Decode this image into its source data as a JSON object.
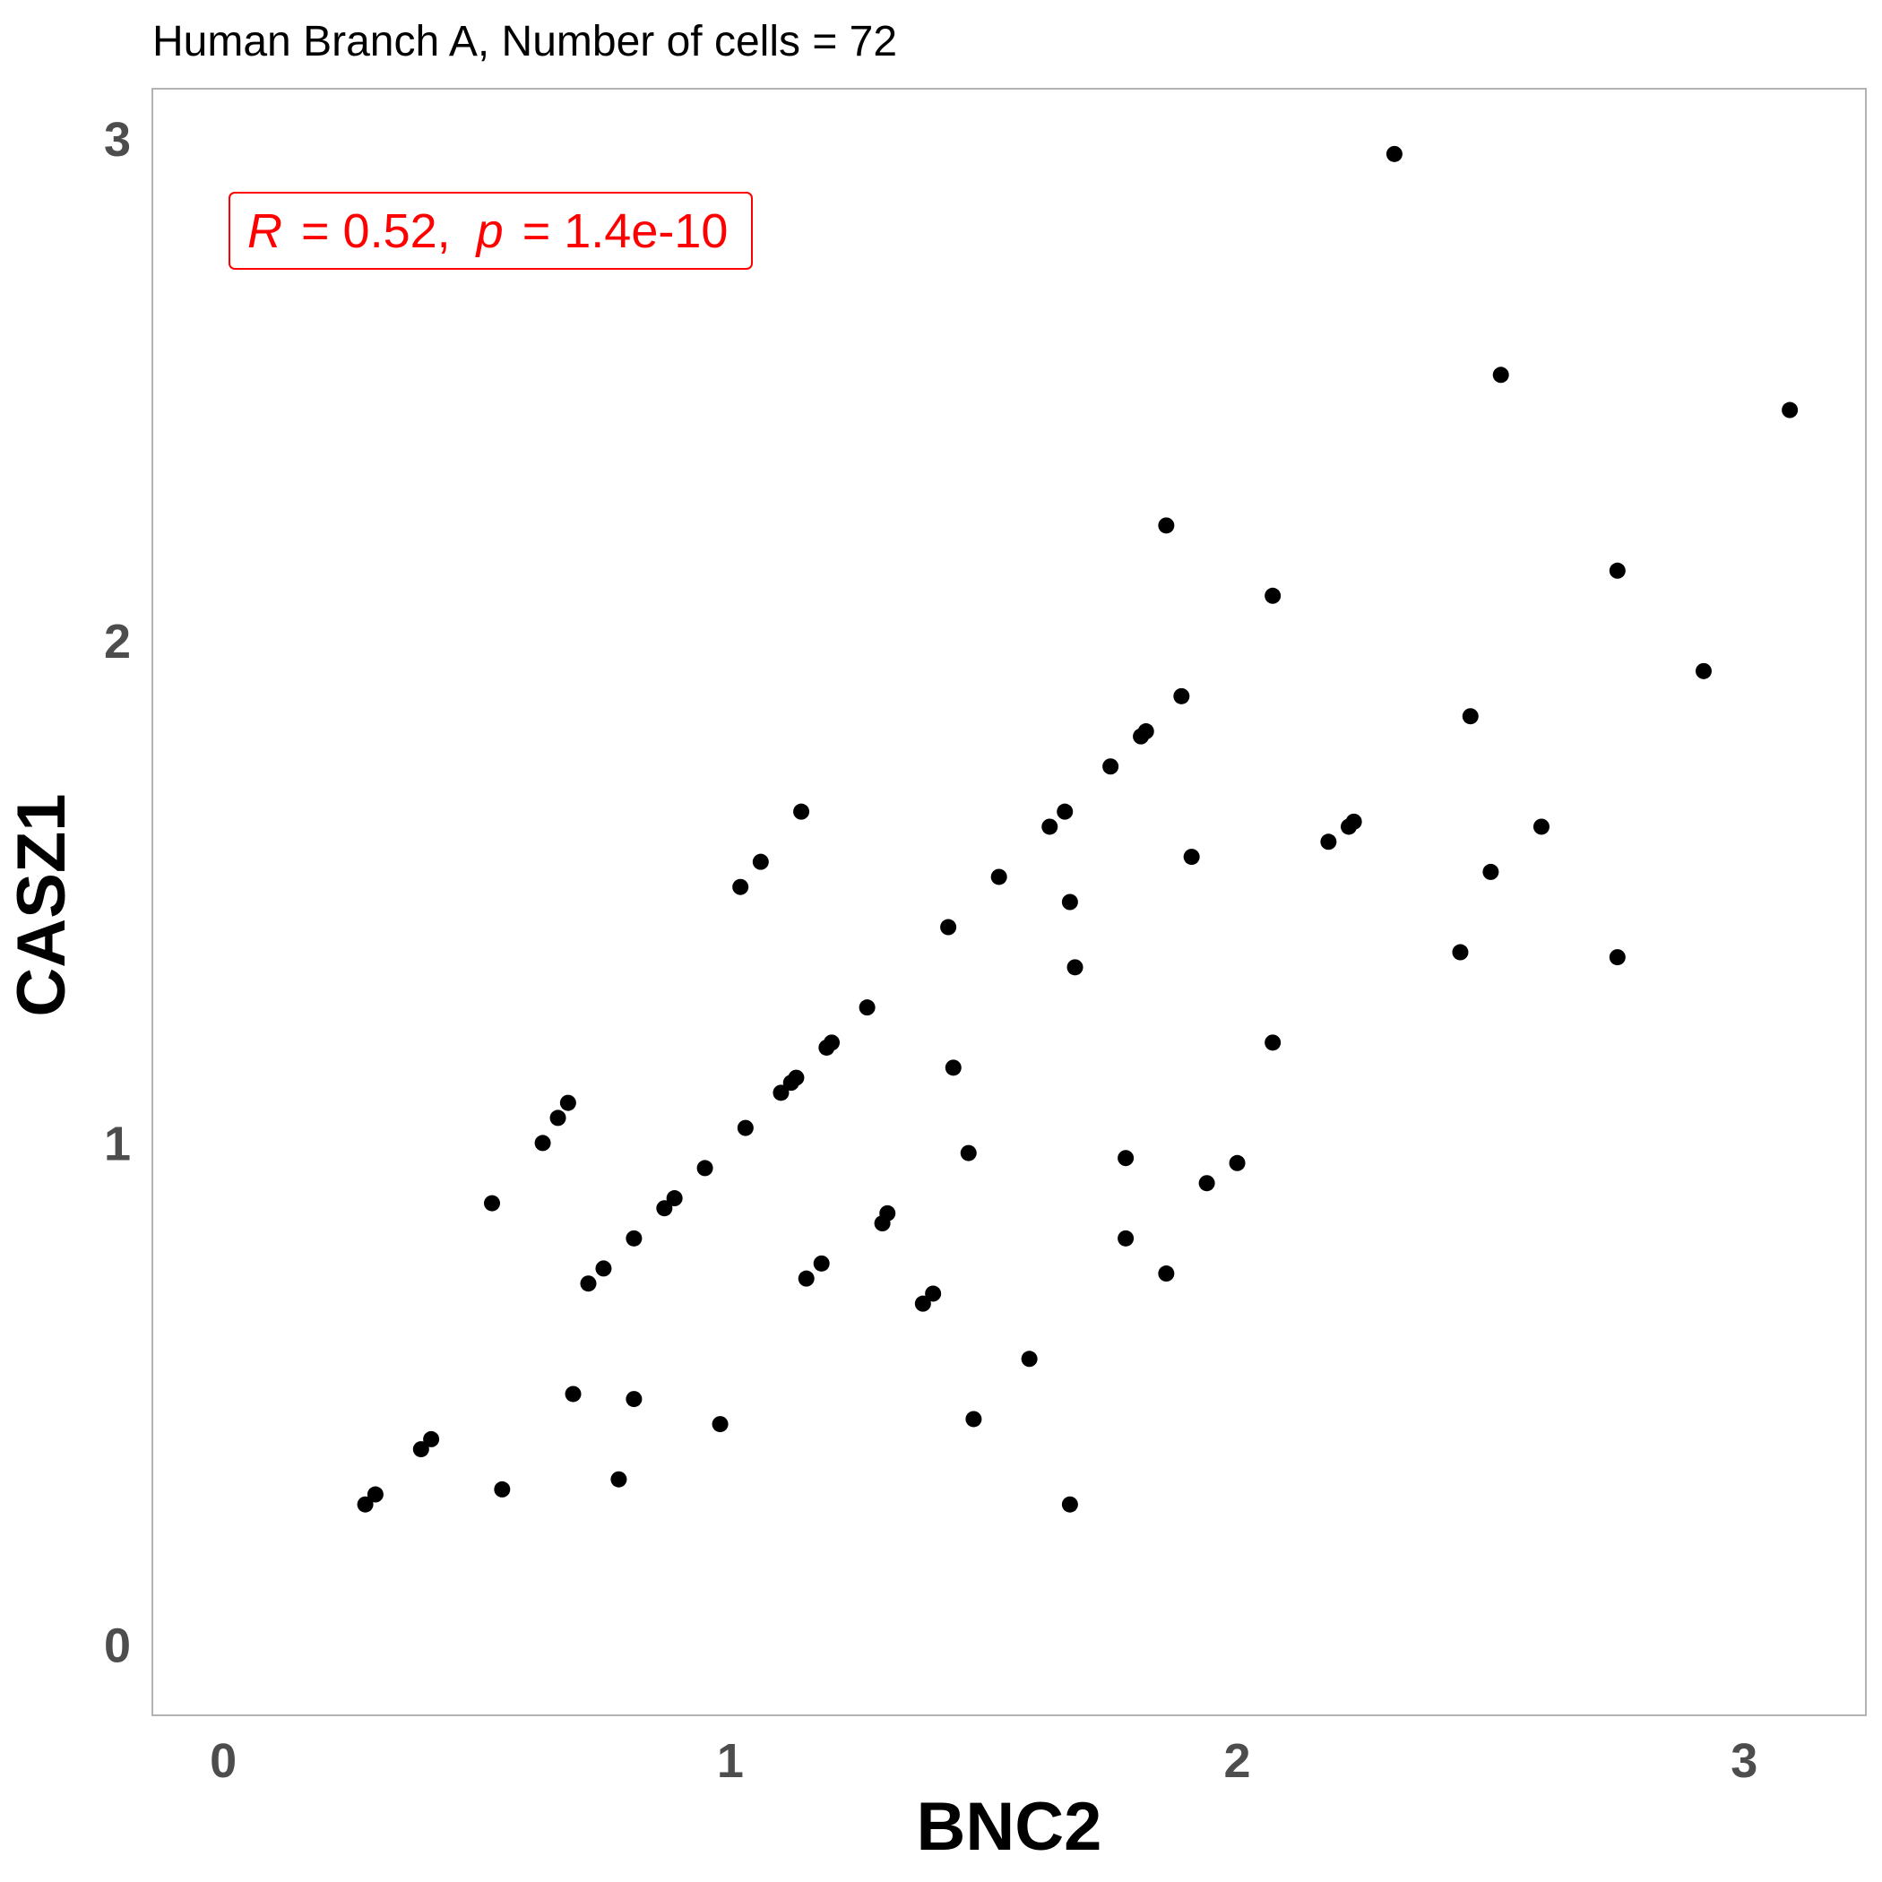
{
  "chart_data": {
    "type": "scatter",
    "title": "Human Branch A, Number of cells = 72",
    "xlabel": "BNC2",
    "ylabel": "CASZ1",
    "xlim": [
      -0.14,
      3.24
    ],
    "ylim": [
      -0.14,
      3.1
    ],
    "x_ticks": [
      0,
      1,
      2,
      3
    ],
    "y_ticks": [
      0,
      1,
      2,
      3
    ],
    "grid": false,
    "legend": "none",
    "point_color": "#000000",
    "annotation": {
      "r_label": "R",
      "r_value": "= 0.52,",
      "p_label": "p",
      "p_value": "= 1.4e-10",
      "color": "#ff0000",
      "position": "top-left"
    },
    "points": [
      {
        "x": 0.28,
        "y": 0.28
      },
      {
        "x": 0.3,
        "y": 0.3
      },
      {
        "x": 0.39,
        "y": 0.39
      },
      {
        "x": 0.41,
        "y": 0.41
      },
      {
        "x": 0.53,
        "y": 0.88
      },
      {
        "x": 0.55,
        "y": 0.31
      },
      {
        "x": 0.63,
        "y": 1.0
      },
      {
        "x": 0.66,
        "y": 1.05
      },
      {
        "x": 0.68,
        "y": 1.08
      },
      {
        "x": 0.69,
        "y": 0.5
      },
      {
        "x": 0.72,
        "y": 0.72
      },
      {
        "x": 0.75,
        "y": 0.75
      },
      {
        "x": 0.78,
        "y": 0.33
      },
      {
        "x": 0.81,
        "y": 0.81
      },
      {
        "x": 0.81,
        "y": 0.49
      },
      {
        "x": 0.87,
        "y": 0.87
      },
      {
        "x": 0.89,
        "y": 0.89
      },
      {
        "x": 0.95,
        "y": 0.95
      },
      {
        "x": 0.98,
        "y": 0.44
      },
      {
        "x": 1.02,
        "y": 1.51
      },
      {
        "x": 1.03,
        "y": 1.03
      },
      {
        "x": 1.06,
        "y": 1.56
      },
      {
        "x": 1.1,
        "y": 1.1
      },
      {
        "x": 1.12,
        "y": 1.12
      },
      {
        "x": 1.13,
        "y": 1.13
      },
      {
        "x": 1.14,
        "y": 1.66
      },
      {
        "x": 1.15,
        "y": 0.73
      },
      {
        "x": 1.18,
        "y": 0.76
      },
      {
        "x": 1.19,
        "y": 1.19
      },
      {
        "x": 1.2,
        "y": 1.2
      },
      {
        "x": 1.27,
        "y": 1.27
      },
      {
        "x": 1.3,
        "y": 0.84
      },
      {
        "x": 1.31,
        "y": 0.86
      },
      {
        "x": 1.38,
        "y": 0.68
      },
      {
        "x": 1.4,
        "y": 0.7
      },
      {
        "x": 1.43,
        "y": 1.43
      },
      {
        "x": 1.44,
        "y": 1.15
      },
      {
        "x": 1.47,
        "y": 0.98
      },
      {
        "x": 1.48,
        "y": 0.45
      },
      {
        "x": 1.53,
        "y": 1.53
      },
      {
        "x": 1.59,
        "y": 0.57
      },
      {
        "x": 1.63,
        "y": 1.63
      },
      {
        "x": 1.66,
        "y": 1.66
      },
      {
        "x": 1.67,
        "y": 1.48
      },
      {
        "x": 1.67,
        "y": 0.28
      },
      {
        "x": 1.68,
        "y": 1.35
      },
      {
        "x": 1.75,
        "y": 1.75
      },
      {
        "x": 1.78,
        "y": 0.97
      },
      {
        "x": 1.78,
        "y": 0.81
      },
      {
        "x": 1.81,
        "y": 1.81
      },
      {
        "x": 1.82,
        "y": 1.82
      },
      {
        "x": 1.86,
        "y": 2.23
      },
      {
        "x": 1.86,
        "y": 0.74
      },
      {
        "x": 1.89,
        "y": 1.89
      },
      {
        "x": 1.91,
        "y": 1.57
      },
      {
        "x": 1.94,
        "y": 0.92
      },
      {
        "x": 2.0,
        "y": 0.96
      },
      {
        "x": 2.07,
        "y": 2.09
      },
      {
        "x": 2.07,
        "y": 1.2
      },
      {
        "x": 2.18,
        "y": 1.6
      },
      {
        "x": 2.22,
        "y": 1.63
      },
      {
        "x": 2.23,
        "y": 1.64
      },
      {
        "x": 2.31,
        "y": 2.97
      },
      {
        "x": 2.44,
        "y": 1.38
      },
      {
        "x": 2.46,
        "y": 1.85
      },
      {
        "x": 2.5,
        "y": 1.54
      },
      {
        "x": 2.52,
        "y": 2.53
      },
      {
        "x": 2.6,
        "y": 1.63
      },
      {
        "x": 2.75,
        "y": 2.14
      },
      {
        "x": 2.75,
        "y": 1.37
      },
      {
        "x": 2.92,
        "y": 1.94
      },
      {
        "x": 3.09,
        "y": 2.46
      }
    ]
  }
}
